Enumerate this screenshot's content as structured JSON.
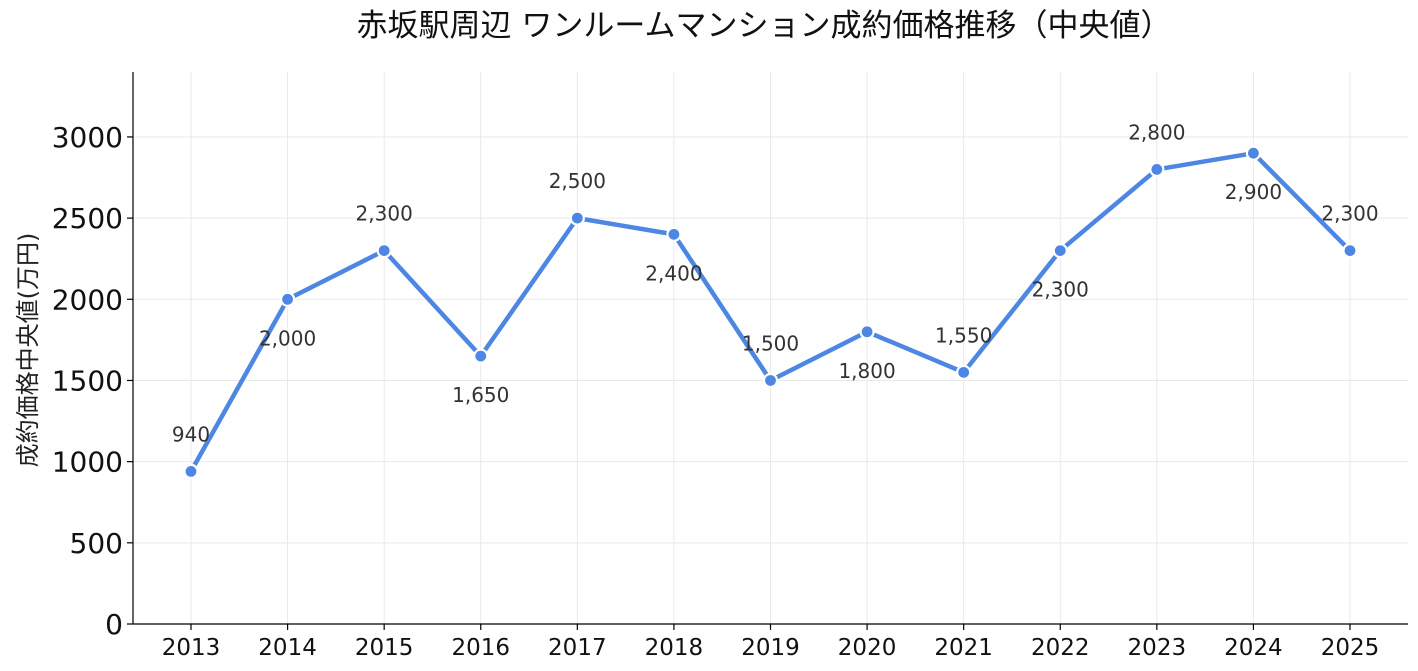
{
  "chart_data": {
    "type": "line",
    "title": "赤坂駅周辺 ワンルームマンション成約価格推移（中央値）",
    "xlabel": "",
    "ylabel": "成約価格中央値(万円)",
    "categories": [
      "2013",
      "2014",
      "2015",
      "2016",
      "2017",
      "2018",
      "2019",
      "2020",
      "2021",
      "2022",
      "2023",
      "2024",
      "2025"
    ],
    "series": [
      {
        "values": [
          940,
          2000,
          2300,
          1650,
          2500,
          2400,
          1500,
          1800,
          1550,
          2300,
          2800,
          2900,
          2300
        ],
        "color": "#4e86e4"
      }
    ],
    "data_labels": [
      "940",
      "2,000",
      "2,300",
      "1,650",
      "2,500",
      "2,400",
      "1,500",
      "1,800",
      "1,550",
      "2,300",
      "2,800",
      "2,900",
      "2,300"
    ],
    "label_positions": [
      "above",
      "below",
      "above",
      "below",
      "above",
      "below",
      "above",
      "below",
      "above",
      "below",
      "above",
      "below",
      "above"
    ],
    "yticks": [
      "0",
      "500",
      "1000",
      "1500",
      "2000",
      "2500",
      "3000"
    ],
    "ylim": [
      0,
      3400
    ],
    "grid": true,
    "legend": "none"
  }
}
